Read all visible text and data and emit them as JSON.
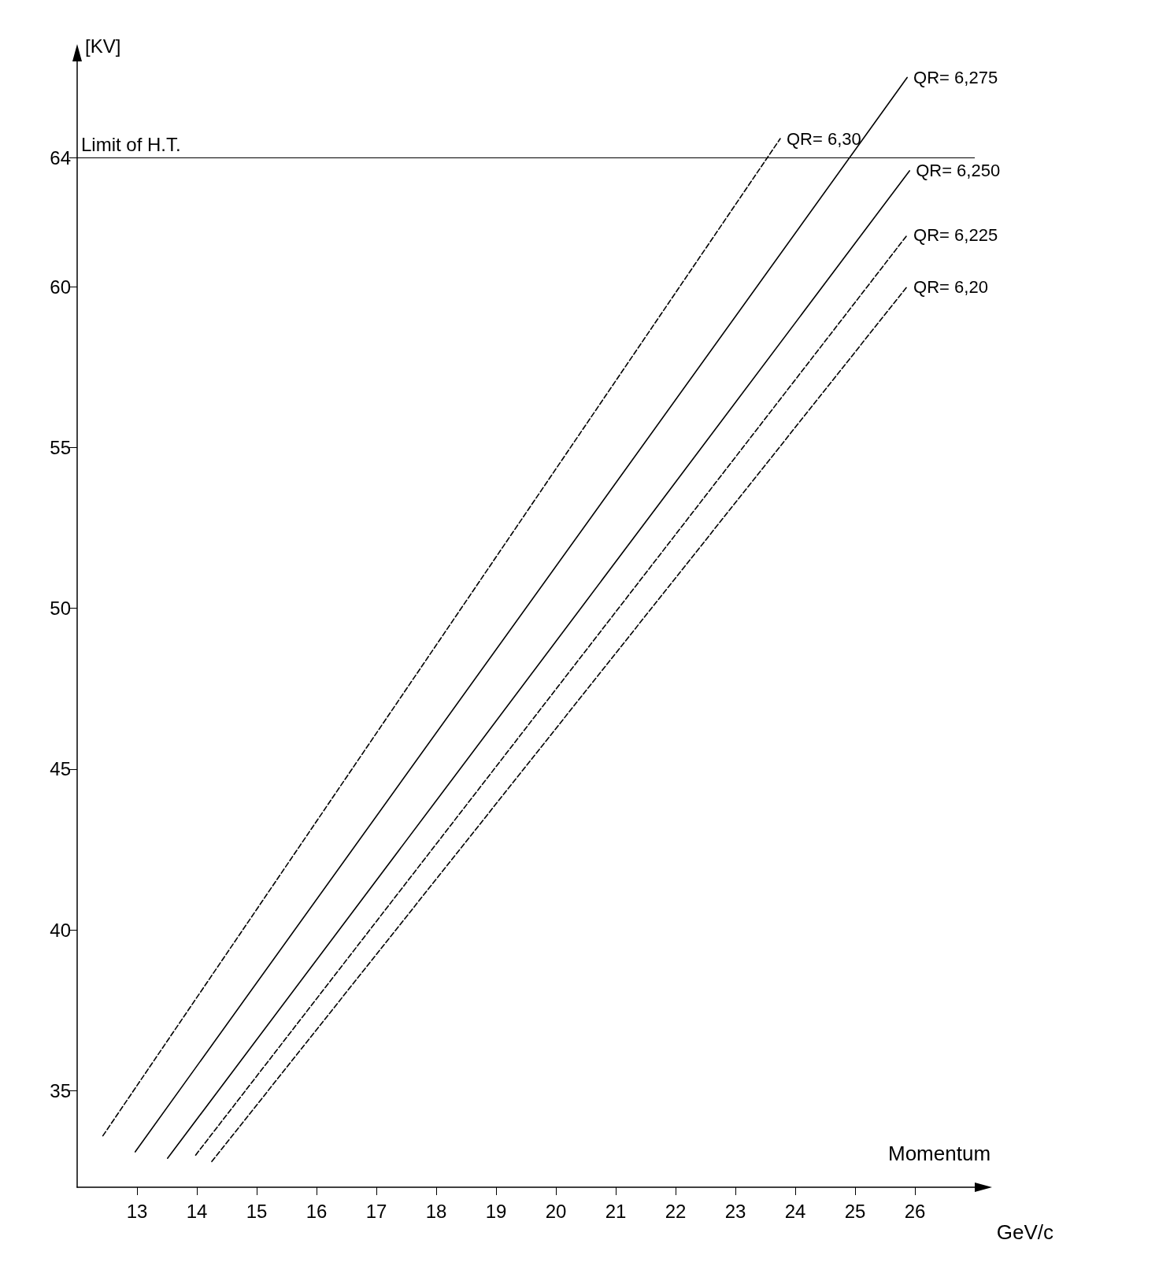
{
  "chart_data": {
    "type": "line",
    "xlabel": "Momentum",
    "ylabel": "[KV]",
    "annotations": [
      "GeV/c"
    ],
    "xlim": [
      12,
      27
    ],
    "ylim": [
      32,
      67
    ],
    "xticks": [
      13,
      14,
      15,
      16,
      17,
      18,
      19,
      20,
      21,
      22,
      23,
      24,
      25,
      26
    ],
    "yticks": [
      35,
      40,
      45,
      50,
      55,
      60,
      64
    ],
    "grid": false,
    "legend": false,
    "marker": "none",
    "ref_lines": [
      {
        "axis": "y",
        "value": 64,
        "label": "Limit of H.T.",
        "color": "#000000"
      }
    ],
    "series": [
      {
        "name": "QR= 6,30",
        "color": "#000000",
        "line_style": "dashed",
        "x": [
          12.43,
          23.75
        ],
        "values": [
          33.6,
          64.6
        ]
      },
      {
        "name": "QR= 6,275",
        "color": "#000000",
        "line_style": "solid",
        "x": [
          12.97,
          25.87
        ],
        "values": [
          33.1,
          66.5
        ]
      },
      {
        "name": "QR= 6,250",
        "color": "#000000",
        "line_style": "solid",
        "x": [
          13.51,
          25.91
        ],
        "values": [
          32.9,
          63.6
        ]
      },
      {
        "name": "QR= 6,225",
        "color": "#000000",
        "line_style": "dashed",
        "x": [
          13.98,
          25.87
        ],
        "values": [
          33.0,
          61.6
        ]
      },
      {
        "name": "QR= 6,20",
        "color": "#000000",
        "line_style": "dashed",
        "x": [
          14.25,
          25.87
        ],
        "values": [
          32.8,
          60.0
        ]
      }
    ]
  }
}
